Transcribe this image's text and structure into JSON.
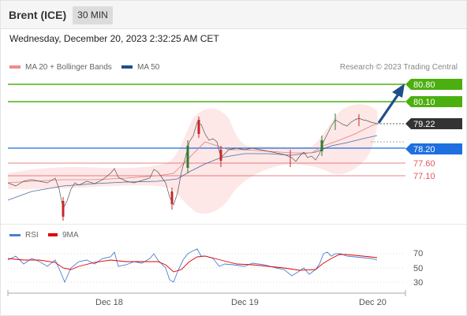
{
  "header": {
    "instrument": "Brent (ICE)",
    "timeframe": "30 MIN"
  },
  "datetime": "Wednesday, December 20, 2023 2:32:25 AM CET",
  "legend": {
    "ma20": "MA 20 + Bollinger Bands",
    "ma50": "MA 50",
    "ma20_color": "#f28b8b",
    "ma50_color": "#1f4e8c"
  },
  "copyright": "Research © 2023 Trading Central",
  "levels": {
    "r2": "80.80",
    "r1": "80.10",
    "current": "79.22",
    "pivot": "78.20",
    "s1": "77.60",
    "s2": "77.10"
  },
  "rsi_legend": {
    "rsi": "RSI",
    "ma9": "9MA",
    "rsi_color": "#4a7fd4",
    "ma9_color": "#e00000"
  },
  "rsi_scale": [
    "70",
    "50",
    "30"
  ],
  "xaxis": [
    "Dec 18",
    "Dec 19",
    "Dec 20"
  ],
  "colors": {
    "resistance": "#4caf10",
    "pivot": "#1e6fe0",
    "support": "#e05a5a",
    "current_bg": "#333333",
    "up": "#2e7d32",
    "down": "#c62828",
    "bollinger_fill": "#fde3e3",
    "arrow": "#1f4e8c"
  }
}
